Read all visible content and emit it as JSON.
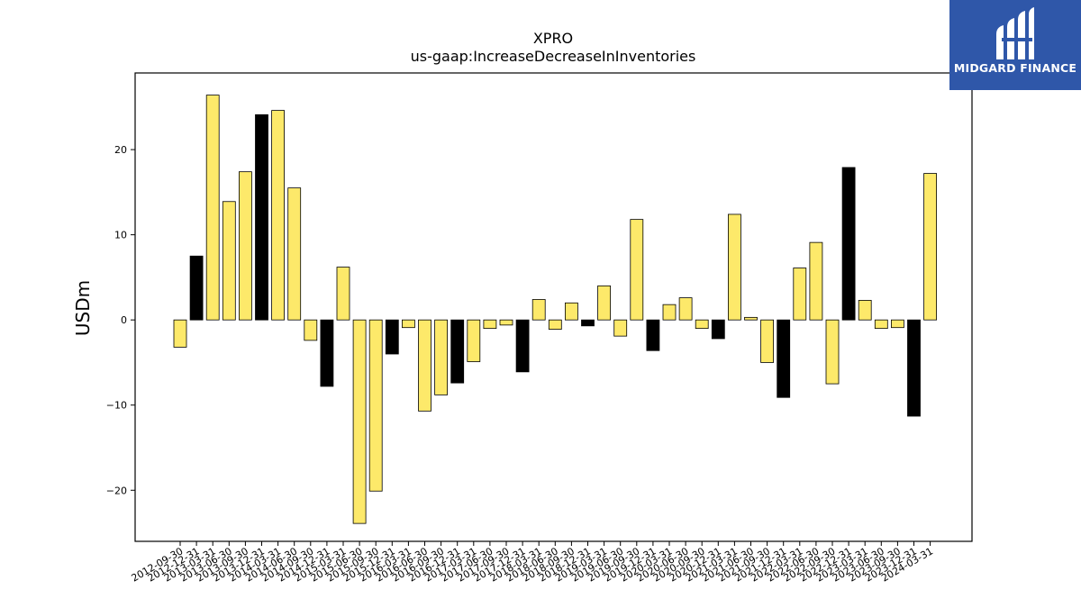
{
  "logo": {
    "text": "MIDGARD FINANCE",
    "icon": "midgard-mark-icon",
    "bg_color": "#2f57a9"
  },
  "chart_data": {
    "type": "bar",
    "title_line1": "XPRO",
    "title_line2": "us-gaap:IncreaseDecreaseInInventories",
    "ylabel": "USDm",
    "xlabel": "",
    "ylim": [
      -26,
      29
    ],
    "yticks": [
      -20,
      -10,
      0,
      10,
      20
    ],
    "grid": false,
    "colors": {
      "yellow": "#fde96a",
      "black": "#000000",
      "edge": "#000000"
    },
    "categories": [
      "2012-09-30",
      "2012-12-31",
      "2013-03-31",
      "2013-06-30",
      "2013-09-30",
      "2013-12-31",
      "2014-03-31",
      "2014-06-30",
      "2014-09-30",
      "2014-12-31",
      "2015-03-31",
      "2015-06-30",
      "2015-09-30",
      "2015-12-31",
      "2016-03-31",
      "2016-06-30",
      "2016-09-30",
      "2016-12-31",
      "2017-03-31",
      "2017-06-30",
      "2017-09-30",
      "2017-12-31",
      "2018-03-31",
      "2018-06-30",
      "2018-09-30",
      "2018-12-31",
      "2019-03-31",
      "2019-06-30",
      "2019-09-30",
      "2019-12-31",
      "2020-03-31",
      "2020-06-30",
      "2020-09-30",
      "2020-12-31",
      "2021-03-31",
      "2021-06-30",
      "2021-09-30",
      "2021-12-31",
      "2022-03-31",
      "2022-06-30",
      "2022-09-30",
      "2022-12-31",
      "2023-03-31",
      "2023-06-30",
      "2023-09-30",
      "2023-12-31",
      "2024-03-31"
    ],
    "values": [
      -3.2,
      7.5,
      26.4,
      13.9,
      17.4,
      24.1,
      24.6,
      15.5,
      -2.4,
      -7.8,
      6.2,
      -23.9,
      -20.1,
      -4.0,
      -0.9,
      -10.7,
      -8.8,
      -7.4,
      -4.9,
      -1.0,
      -0.6,
      -6.1,
      2.4,
      -1.1,
      2.0,
      -0.7,
      4.0,
      -1.9,
      11.8,
      -3.6,
      1.8,
      2.6,
      -1.0,
      -2.2,
      12.4,
      0.3,
      -5.0,
      -9.1,
      6.1,
      9.1,
      -7.5,
      17.9,
      2.3,
      -1.0,
      -0.9,
      -11.3,
      17.2
    ],
    "bar_colors": [
      "yellow",
      "black",
      "yellow",
      "yellow",
      "yellow",
      "black",
      "yellow",
      "yellow",
      "yellow",
      "black",
      "yellow",
      "yellow",
      "yellow",
      "black",
      "yellow",
      "yellow",
      "yellow",
      "black",
      "yellow",
      "yellow",
      "yellow",
      "black",
      "yellow",
      "yellow",
      "yellow",
      "black",
      "yellow",
      "yellow",
      "yellow",
      "black",
      "yellow",
      "yellow",
      "yellow",
      "black",
      "yellow",
      "yellow",
      "yellow",
      "black",
      "yellow",
      "yellow",
      "yellow",
      "black",
      "yellow",
      "yellow",
      "yellow",
      "black",
      "yellow"
    ]
  }
}
